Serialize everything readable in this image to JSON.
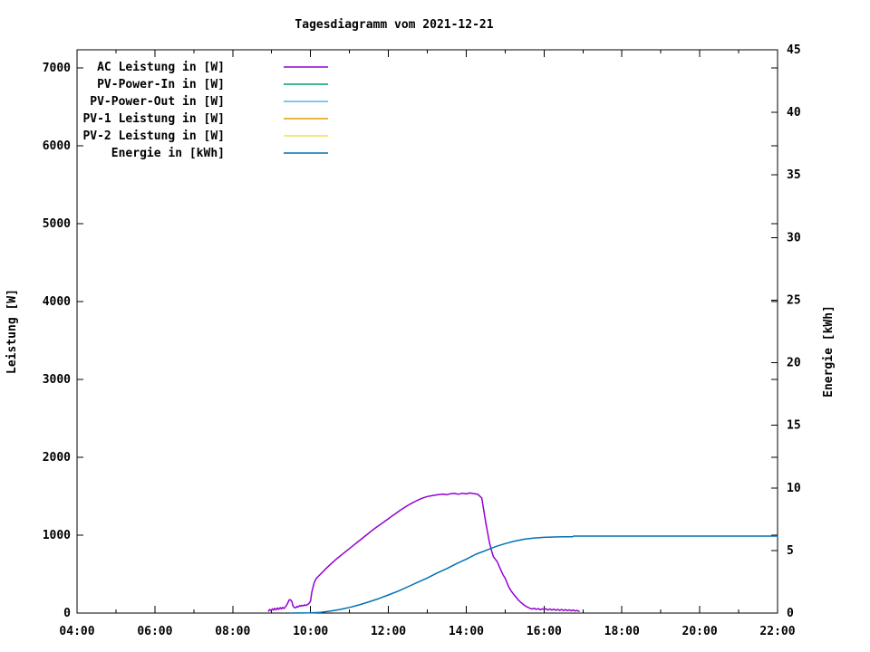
{
  "colors": {
    "background": "#FFFFFF",
    "axis": "#000000",
    "text": "#000000"
  },
  "chart_data": {
    "type": "line",
    "title": "Tagesdiagramm vom 2021-12-21",
    "ylabel": "Leistung [W]",
    "y2label": "Energie [kWh]",
    "x_axis": {
      "min_hour": 4,
      "max_hour": 22,
      "major_tick_hours": [
        4,
        6,
        8,
        10,
        12,
        14,
        16,
        18,
        20,
        22
      ],
      "major_tick_labels": [
        "04:00",
        "06:00",
        "08:00",
        "10:00",
        "12:00",
        "14:00",
        "16:00",
        "18:00",
        "20:00",
        "22:00"
      ],
      "minor_tick_hours": [
        5,
        7,
        9,
        11,
        13,
        15,
        17,
        19,
        21
      ]
    },
    "y_axis": {
      "min": 0,
      "max": 7232,
      "tick_values": [
        0,
        1000,
        2000,
        3000,
        4000,
        5000,
        6000,
        7000
      ],
      "tick_labels": [
        "0",
        "1000",
        "2000",
        "3000",
        "4000",
        "5000",
        "6000",
        "7000"
      ]
    },
    "y2_axis": {
      "min": 0,
      "max": 45,
      "tick_values": [
        0,
        5,
        10,
        15,
        20,
        25,
        30,
        35,
        40,
        45
      ],
      "tick_labels": [
        "0",
        "5",
        "10",
        "15",
        "20",
        "25",
        "30",
        "35",
        "40",
        "45"
      ]
    },
    "grid": false,
    "legend_position": "top-left-inside",
    "legend": [
      {
        "label": "AC Leistung in [W]",
        "color": "#9400D3"
      },
      {
        "label": "PV-Power-In in [W]",
        "color": "#009E73"
      },
      {
        "label": "PV-Power-Out in [W]",
        "color": "#56B4E9"
      },
      {
        "label": "PV-1 Leistung in [W]",
        "color": "#E69F00"
      },
      {
        "label": "PV-2 Leistung in [W]",
        "color": "#F0E442"
      },
      {
        "label": "Energie in [kWh]",
        "color": "#0072B2"
      }
    ],
    "series": [
      {
        "name": "AC Leistung in [W]",
        "axis": "y1",
        "color": "#9400D3",
        "points": [
          [
            8.92,
            25
          ],
          [
            8.95,
            45
          ],
          [
            8.98,
            30
          ],
          [
            9.02,
            55
          ],
          [
            9.05,
            38
          ],
          [
            9.08,
            60
          ],
          [
            9.12,
            42
          ],
          [
            9.15,
            65
          ],
          [
            9.18,
            48
          ],
          [
            9.22,
            70
          ],
          [
            9.25,
            52
          ],
          [
            9.28,
            72
          ],
          [
            9.32,
            58
          ],
          [
            9.35,
            78
          ],
          [
            9.38,
            95
          ],
          [
            9.42,
            135
          ],
          [
            9.45,
            168
          ],
          [
            9.48,
            172
          ],
          [
            9.52,
            148
          ],
          [
            9.55,
            92
          ],
          [
            9.58,
            72
          ],
          [
            9.62,
            68
          ],
          [
            9.65,
            85
          ],
          [
            9.68,
            78
          ],
          [
            9.72,
            95
          ],
          [
            9.75,
            88
          ],
          [
            9.78,
            100
          ],
          [
            9.82,
            92
          ],
          [
            9.85,
            105
          ],
          [
            9.88,
            98
          ],
          [
            9.92,
            108
          ],
          [
            9.95,
            118
          ],
          [
            10.0,
            155
          ],
          [
            10.03,
            265
          ],
          [
            10.07,
            345
          ],
          [
            10.1,
            400
          ],
          [
            10.15,
            445
          ],
          [
            10.2,
            472
          ],
          [
            10.3,
            522
          ],
          [
            10.4,
            572
          ],
          [
            10.5,
            620
          ],
          [
            10.6,
            665
          ],
          [
            10.7,
            708
          ],
          [
            10.8,
            748
          ],
          [
            10.9,
            788
          ],
          [
            11.0,
            828
          ],
          [
            11.1,
            868
          ],
          [
            11.2,
            908
          ],
          [
            11.3,
            948
          ],
          [
            11.4,
            988
          ],
          [
            11.5,
            1028
          ],
          [
            11.6,
            1068
          ],
          [
            11.7,
            1105
          ],
          [
            11.8,
            1140
          ],
          [
            11.9,
            1175
          ],
          [
            12.0,
            1210
          ],
          [
            12.1,
            1248
          ],
          [
            12.2,
            1282
          ],
          [
            12.3,
            1318
          ],
          [
            12.4,
            1350
          ],
          [
            12.5,
            1382
          ],
          [
            12.6,
            1410
          ],
          [
            12.7,
            1436
          ],
          [
            12.8,
            1460
          ],
          [
            12.9,
            1480
          ],
          [
            13.0,
            1496
          ],
          [
            13.1,
            1506
          ],
          [
            13.2,
            1514
          ],
          [
            13.3,
            1522
          ],
          [
            13.4,
            1528
          ],
          [
            13.5,
            1520
          ],
          [
            13.6,
            1532
          ],
          [
            13.7,
            1536
          ],
          [
            13.8,
            1526
          ],
          [
            13.9,
            1538
          ],
          [
            14.0,
            1530
          ],
          [
            14.1,
            1542
          ],
          [
            14.2,
            1534
          ],
          [
            14.3,
            1524
          ],
          [
            14.4,
            1478
          ],
          [
            14.45,
            1320
          ],
          [
            14.5,
            1170
          ],
          [
            14.55,
            1030
          ],
          [
            14.6,
            900
          ],
          [
            14.65,
            800
          ],
          [
            14.7,
            722
          ],
          [
            14.75,
            690
          ],
          [
            14.8,
            658
          ],
          [
            14.85,
            598
          ],
          [
            14.9,
            542
          ],
          [
            14.95,
            488
          ],
          [
            15.0,
            448
          ],
          [
            15.05,
            388
          ],
          [
            15.1,
            328
          ],
          [
            15.15,
            288
          ],
          [
            15.2,
            252
          ],
          [
            15.25,
            222
          ],
          [
            15.3,
            192
          ],
          [
            15.35,
            162
          ],
          [
            15.4,
            138
          ],
          [
            15.45,
            118
          ],
          [
            15.5,
            98
          ],
          [
            15.55,
            82
          ],
          [
            15.6,
            70
          ],
          [
            15.65,
            58
          ],
          [
            15.7,
            52
          ],
          [
            15.75,
            62
          ],
          [
            15.8,
            46
          ],
          [
            15.85,
            58
          ],
          [
            15.9,
            42
          ],
          [
            15.95,
            55
          ],
          [
            16.0,
            45
          ],
          [
            16.05,
            56
          ],
          [
            16.1,
            40
          ],
          [
            16.15,
            52
          ],
          [
            16.2,
            38
          ],
          [
            16.25,
            50
          ],
          [
            16.3,
            36
          ],
          [
            16.35,
            48
          ],
          [
            16.4,
            34
          ],
          [
            16.45,
            46
          ],
          [
            16.5,
            33
          ],
          [
            16.55,
            44
          ],
          [
            16.6,
            31
          ],
          [
            16.65,
            42
          ],
          [
            16.7,
            29
          ],
          [
            16.75,
            40
          ],
          [
            16.8,
            27
          ],
          [
            16.85,
            34
          ],
          [
            16.9,
            22
          ]
        ]
      },
      {
        "name": "PV-Power-In in [W]",
        "axis": "y1",
        "color": "#009E73",
        "points": []
      },
      {
        "name": "PV-Power-Out in [W]",
        "axis": "y1",
        "color": "#56B4E9",
        "points": []
      },
      {
        "name": "PV-1 Leistung in [W]",
        "axis": "y1",
        "color": "#E69F00",
        "points": []
      },
      {
        "name": "PV-2 Leistung in [W]",
        "axis": "y1",
        "color": "#F0E442",
        "points": []
      },
      {
        "name": "Energie in [kWh]",
        "axis": "y2",
        "color": "#0072B2",
        "points": [
          [
            9.5,
            0
          ],
          [
            9.75,
            0.01
          ],
          [
            10.0,
            0.02
          ],
          [
            10.25,
            0.06
          ],
          [
            10.5,
            0.15
          ],
          [
            10.75,
            0.28
          ],
          [
            11.0,
            0.45
          ],
          [
            11.25,
            0.65
          ],
          [
            11.5,
            0.9
          ],
          [
            11.75,
            1.15
          ],
          [
            12.0,
            1.45
          ],
          [
            12.25,
            1.75
          ],
          [
            12.5,
            2.1
          ],
          [
            12.75,
            2.45
          ],
          [
            13.0,
            2.8
          ],
          [
            13.25,
            3.2
          ],
          [
            13.5,
            3.55
          ],
          [
            13.75,
            3.95
          ],
          [
            14.0,
            4.3
          ],
          [
            14.25,
            4.7
          ],
          [
            14.5,
            5.0
          ],
          [
            14.75,
            5.3
          ],
          [
            15.0,
            5.55
          ],
          [
            15.25,
            5.75
          ],
          [
            15.5,
            5.9
          ],
          [
            15.75,
            6.0
          ],
          [
            16.0,
            6.05
          ],
          [
            16.25,
            6.08
          ],
          [
            16.5,
            6.09
          ],
          [
            16.74,
            6.1
          ],
          [
            16.76,
            6.15
          ],
          [
            17.0,
            6.15
          ],
          [
            18.0,
            6.15
          ],
          [
            19.0,
            6.15
          ],
          [
            20.0,
            6.15
          ],
          [
            21.0,
            6.15
          ],
          [
            22.0,
            6.15
          ]
        ]
      }
    ]
  }
}
